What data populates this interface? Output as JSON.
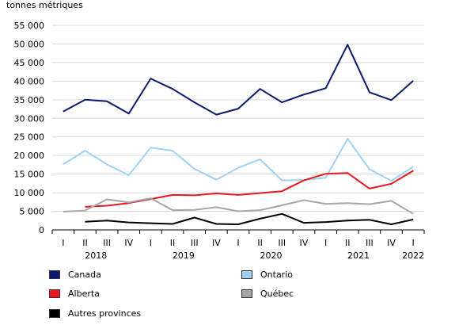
{
  "chart_data": {
    "type": "line",
    "ylabel": "tonnes métriques",
    "ylim": [
      0,
      55000
    ],
    "yticks": [
      0,
      5000,
      10000,
      15000,
      20000,
      25000,
      30000,
      35000,
      40000,
      45000,
      50000,
      55000
    ],
    "ytick_labels": [
      "0",
      "5 000",
      "10 000",
      "15 000",
      "20 000",
      "25 000",
      "30 000",
      "35 000",
      "40 000",
      "45 000",
      "50 000",
      "55 000"
    ],
    "categories": [
      "I",
      "II",
      "III",
      "IV",
      "I",
      "II",
      "III",
      "IV",
      "I",
      "II",
      "III",
      "IV",
      "I",
      "II",
      "III",
      "IV",
      "I"
    ],
    "years": [
      {
        "label": "2018",
        "start": 0,
        "end": 3
      },
      {
        "label": "2019",
        "start": 4,
        "end": 7
      },
      {
        "label": "2020",
        "start": 8,
        "end": 11
      },
      {
        "label": "2021",
        "start": 12,
        "end": 15
      },
      {
        "label": "2022",
        "start": 16,
        "end": 16
      }
    ],
    "grid": true,
    "legend_position": "bottom",
    "series": [
      {
        "name": "Canada",
        "color": "#0a1a6e",
        "values": [
          31800,
          35000,
          34600,
          31300,
          40700,
          37900,
          34300,
          31000,
          32600,
          37900,
          34300,
          36400,
          38100,
          49800,
          37000,
          34900,
          40100
        ]
      },
      {
        "name": "Ontario",
        "color": "#9fd1f7",
        "values": [
          17600,
          21300,
          17600,
          14700,
          22100,
          21300,
          16400,
          13500,
          16700,
          19000,
          13300,
          13400,
          14000,
          24500,
          16300,
          13200,
          17000
        ]
      },
      {
        "name": "Alberta",
        "color": "#e8171d",
        "values": [
          null,
          6200,
          6500,
          7200,
          8300,
          9400,
          9300,
          9800,
          9400,
          9900,
          10400,
          13300,
          15100,
          15300,
          11100,
          12400,
          15900
        ]
      },
      {
        "name": "Québec",
        "color": "#a6a6a6",
        "values": [
          4900,
          5200,
          8200,
          7400,
          8500,
          5300,
          5400,
          6100,
          5000,
          5300,
          6600,
          8000,
          7000,
          7200,
          6900,
          7800,
          4300
        ]
      },
      {
        "name": "Autres provinces",
        "color": "#000000",
        "values": [
          null,
          2200,
          2500,
          2000,
          1800,
          1600,
          3300,
          1600,
          1500,
          3000,
          4300,
          1900,
          2100,
          2500,
          2700,
          1500,
          2800
        ]
      }
    ]
  }
}
